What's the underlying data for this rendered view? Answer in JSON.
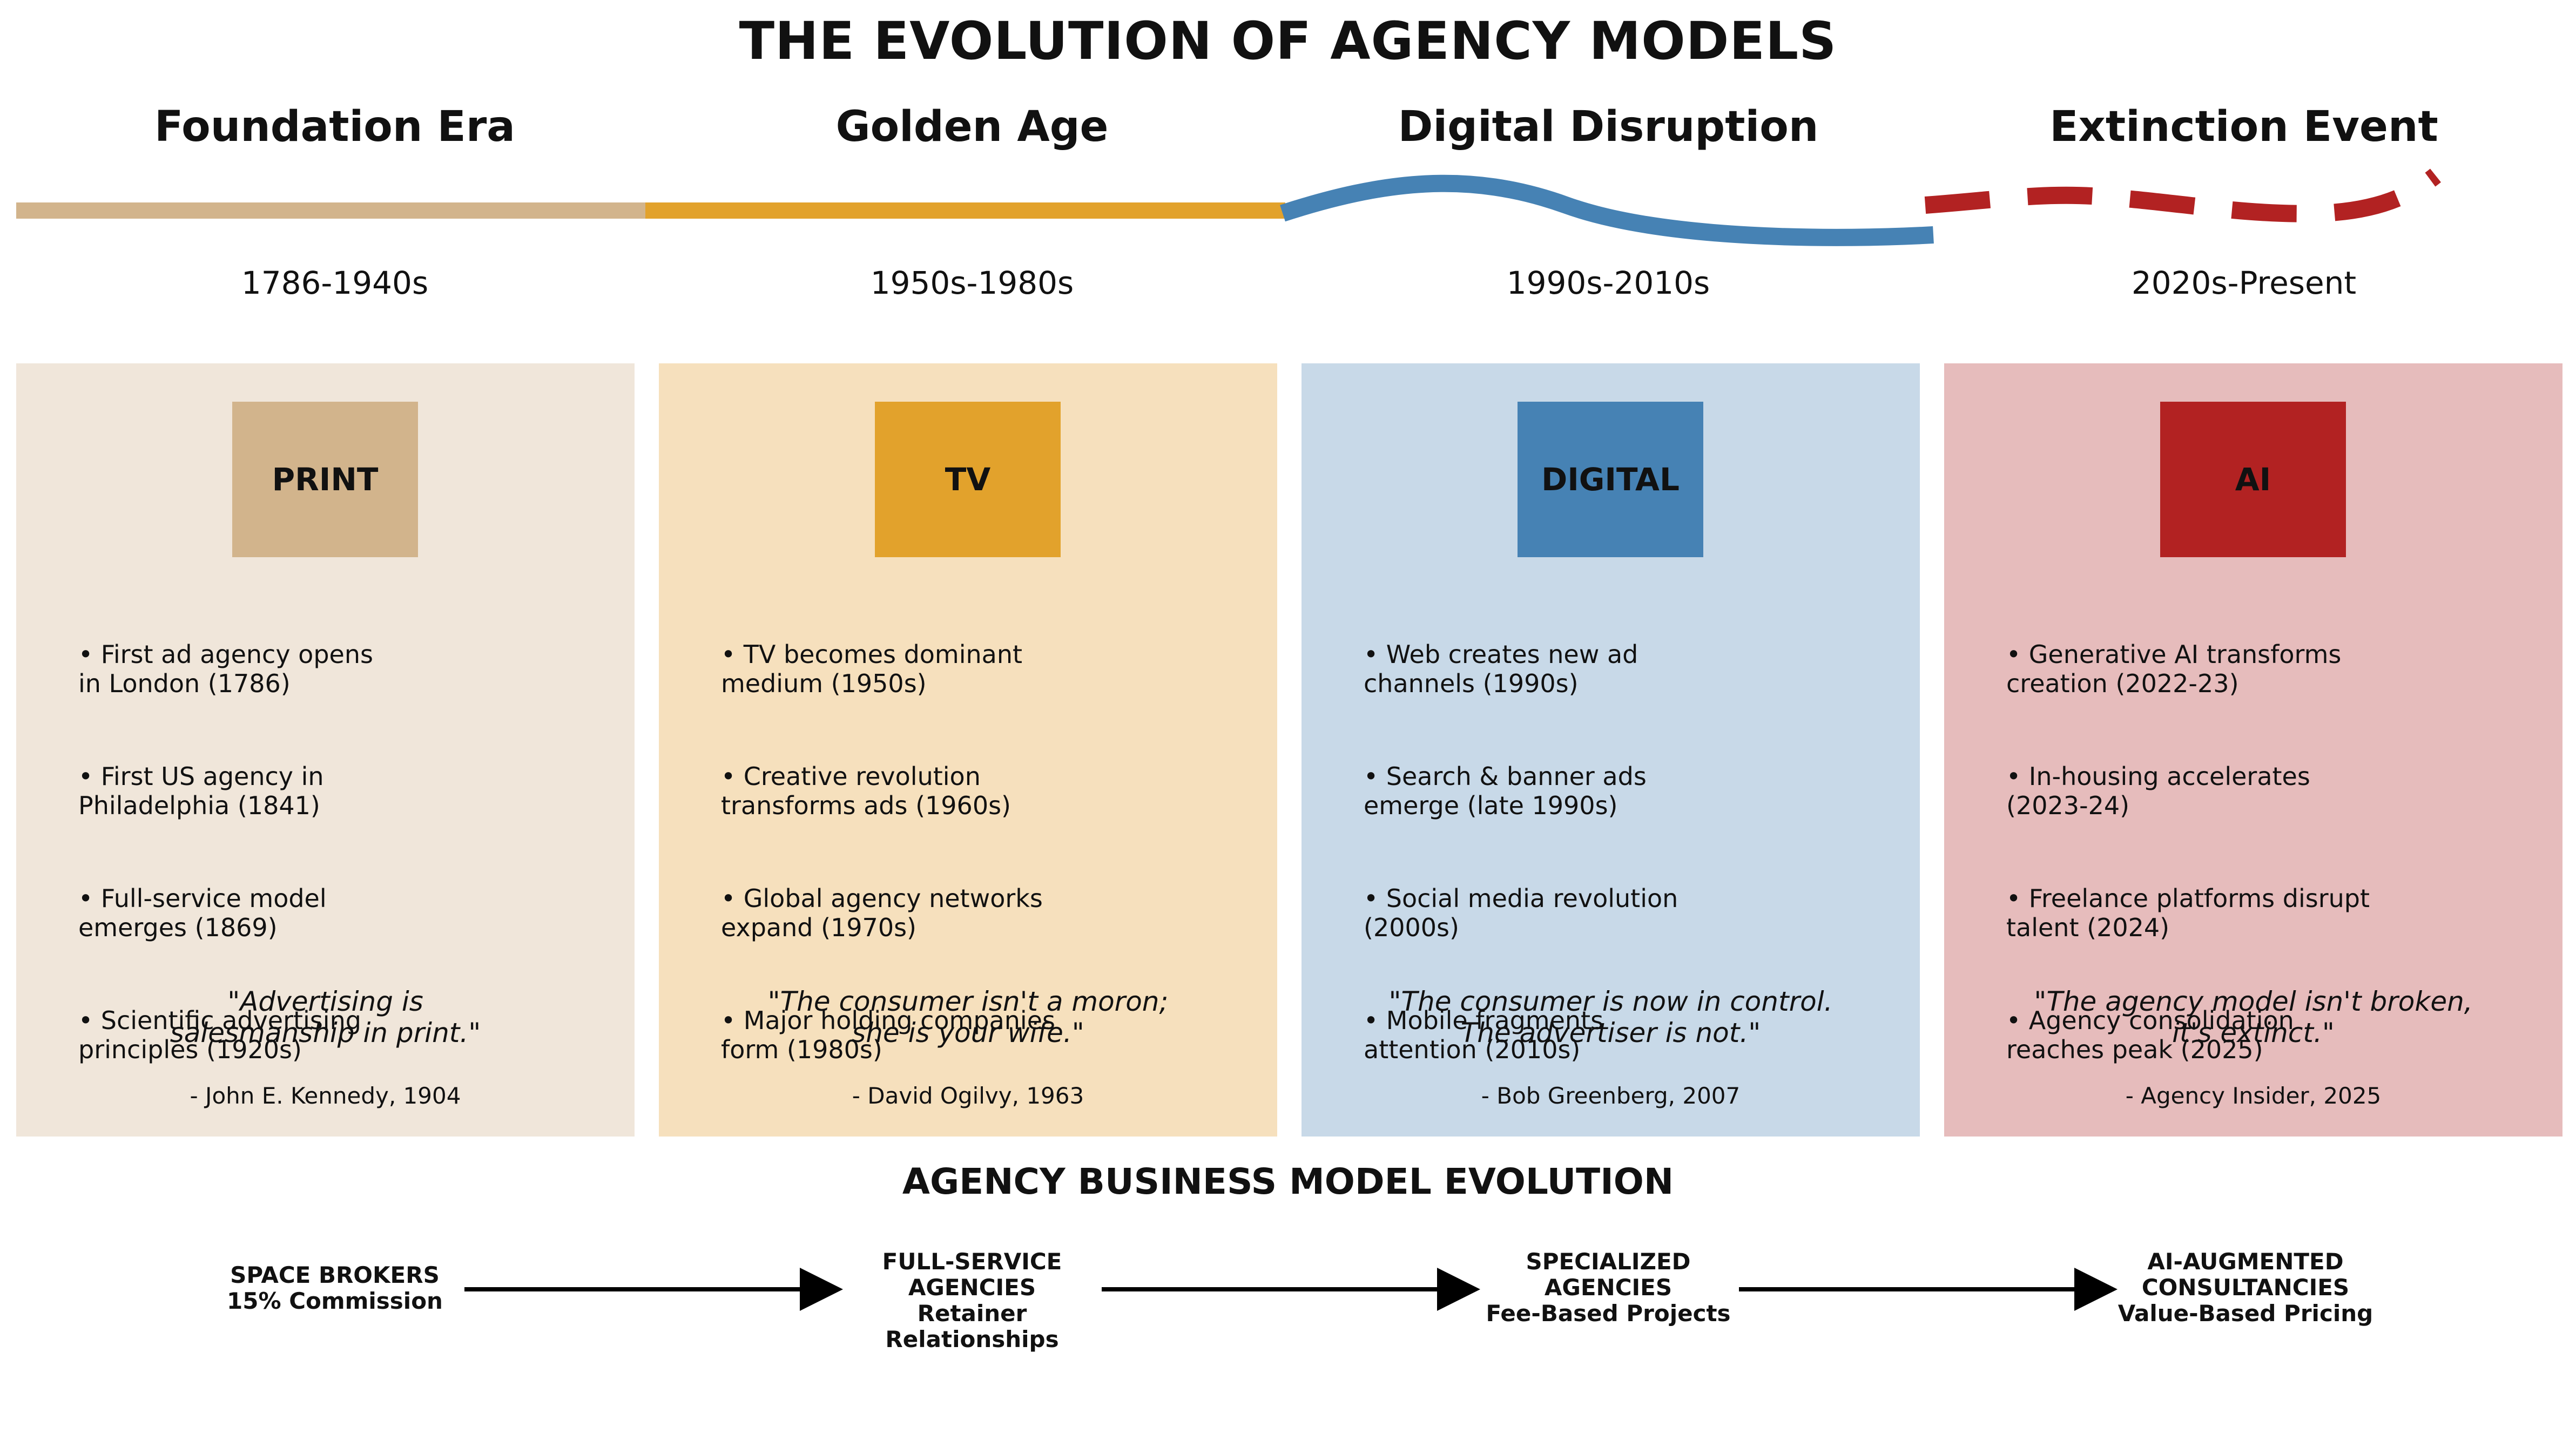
{
  "title": "THE EVOLUTION OF AGENCY MODELS",
  "eras": [
    {
      "name": "Foundation Era",
      "years": "1786-1940s",
      "badge": "PRINT",
      "bullets": [
        [
          "• First ad agency opens",
          "in London (1786)"
        ],
        [
          "• First US agency in",
          "Philadelphia (1841)"
        ],
        [
          "• Full-service model",
          "emerges (1869)"
        ],
        [
          "• Scientific advertising",
          "principles (1920s)"
        ]
      ],
      "quote": [
        "\"Advertising is",
        "salesmanship in print.\""
      ],
      "attribution": "- John E. Kennedy, 1904"
    },
    {
      "name": "Golden Age",
      "years": "1950s-1980s",
      "badge": "TV",
      "bullets": [
        [
          "• TV becomes dominant",
          "medium (1950s)"
        ],
        [
          "• Creative revolution",
          "transforms ads (1960s)"
        ],
        [
          "• Global agency networks",
          "expand (1970s)"
        ],
        [
          "• Major holding companies",
          "form (1980s)"
        ]
      ],
      "quote": [
        "\"The consumer isn't a moron;",
        "she is your wife.\""
      ],
      "attribution": "- David Ogilvy, 1963"
    },
    {
      "name": "Digital Disruption",
      "years": "1990s-2010s",
      "badge": "DIGITAL",
      "bullets": [
        [
          "• Web creates new ad",
          "channels (1990s)"
        ],
        [
          "• Search & banner ads",
          "emerge (late 1990s)"
        ],
        [
          "• Social media revolution",
          "(2000s)"
        ],
        [
          "• Mobile fragments",
          "attention (2010s)"
        ]
      ],
      "quote": [
        "\"The consumer is now in control.",
        "The advertiser is not.\""
      ],
      "attribution": "- Bob Greenberg, 2007"
    },
    {
      "name": "Extinction Event",
      "years": "2020s-Present",
      "badge": "AI",
      "bullets": [
        [
          "• Generative AI transforms",
          "creation (2022-23)"
        ],
        [
          "• In-housing accelerates",
          "(2023-24)"
        ],
        [
          "• Freelance platforms disrupt",
          "talent (2024)"
        ],
        [
          "• Agency consolidation",
          "reaches peak (2025)"
        ]
      ],
      "quote": [
        "\"The agency model isn't broken,",
        "it's extinct.\""
      ],
      "attribution": "- Agency Insider, 2025"
    }
  ],
  "colors": {
    "print_panel": "#f0e6da",
    "print_badge": "#d2b48c",
    "tv_panel": "#f6e0bd",
    "tv_badge": "#e2a22c",
    "digital_panel": "#c8d9e8",
    "digital_badge": "#4682b4",
    "ai_panel": "#e6bcbc",
    "ai_badge": "#b22222"
  },
  "business_model": {
    "title": "AGENCY BUSINESS MODEL EVOLUTION",
    "stages": [
      [
        "SPACE BROKERS",
        "15% Commission"
      ],
      [
        "FULL-SERVICE",
        "AGENCIES",
        "Retainer Relationships"
      ],
      [
        "SPECIALIZED",
        "AGENCIES",
        "Fee-Based Projects"
      ],
      [
        "AI-AUGMENTED",
        "CONSULTANCIES",
        "Value-Based Pricing"
      ]
    ]
  }
}
